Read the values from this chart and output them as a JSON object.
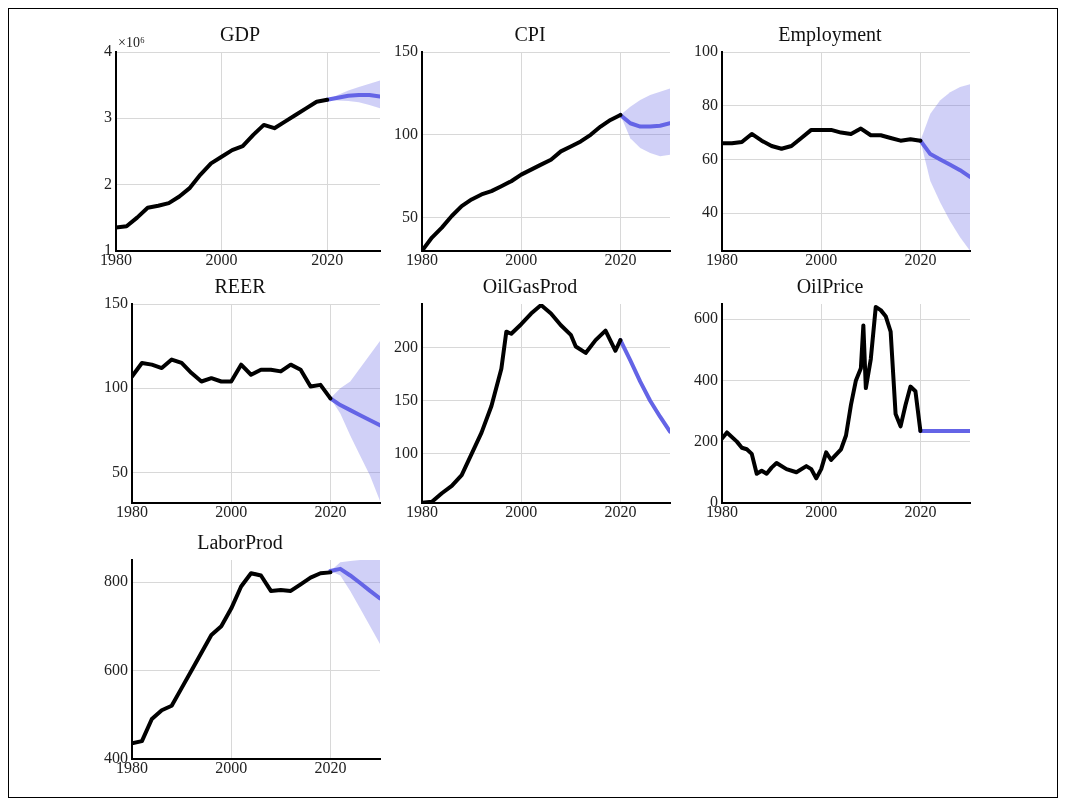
{
  "chart_data": [
    {
      "type": "line",
      "title": "GDP",
      "annotations": [
        "×10⁶"
      ],
      "xlim": [
        1980,
        2030
      ],
      "xticks": [
        1980,
        2000,
        2020
      ],
      "ylim": [
        1,
        4
      ],
      "yticks": [
        1,
        2,
        3,
        4
      ],
      "grid": true,
      "legend": false,
      "line_style": "solid",
      "marker": "none",
      "series": [
        {
          "color": "#000000",
          "x": [
            1980,
            1982,
            1984,
            1986,
            1988,
            1990,
            1992,
            1994,
            1996,
            1998,
            2000,
            2002,
            2004,
            2006,
            2008,
            2010,
            2012,
            2014,
            2016,
            2018,
            2020
          ],
          "values": [
            1.35,
            1.37,
            1.5,
            1.65,
            1.68,
            1.72,
            1.82,
            1.95,
            2.15,
            2.32,
            2.42,
            2.52,
            2.58,
            2.75,
            2.9,
            2.85,
            2.95,
            3.05,
            3.15,
            3.25,
            3.28
          ]
        },
        {
          "color": "#6464e6",
          "x": [
            2020,
            2022,
            2024,
            2026,
            2028,
            2030
          ],
          "values": [
            3.28,
            3.31,
            3.34,
            3.35,
            3.35,
            3.33
          ],
          "lower": [
            3.28,
            3.27,
            3.26,
            3.24,
            3.2,
            3.15
          ],
          "upper": [
            3.28,
            3.35,
            3.42,
            3.47,
            3.52,
            3.57
          ]
        }
      ]
    },
    {
      "type": "line",
      "title": "CPI",
      "xlim": [
        1980,
        2030
      ],
      "xticks": [
        1980,
        2000,
        2020
      ],
      "ylim": [
        30,
        150
      ],
      "yticks": [
        50,
        100,
        150
      ],
      "grid": true,
      "legend": false,
      "line_style": "solid",
      "marker": "none",
      "series": [
        {
          "color": "#000000",
          "x": [
            1980,
            1982,
            1984,
            1986,
            1988,
            1990,
            1992,
            1994,
            1996,
            1998,
            2000,
            2002,
            2004,
            2006,
            2008,
            2010,
            2012,
            2014,
            2016,
            2018,
            2020
          ],
          "values": [
            30,
            38,
            44,
            51,
            57,
            61,
            64,
            66,
            69,
            72,
            76,
            79,
            82,
            85,
            90,
            93,
            96,
            100,
            105,
            109,
            112
          ]
        },
        {
          "color": "#6464e6",
          "x": [
            2020,
            2022,
            2024,
            2026,
            2028,
            2030
          ],
          "values": [
            112,
            107,
            105,
            105,
            105.5,
            107
          ],
          "lower": [
            112,
            98,
            92,
            89,
            87,
            88
          ],
          "upper": [
            112,
            117,
            121,
            124,
            126,
            128
          ]
        }
      ]
    },
    {
      "type": "line",
      "title": "Employment",
      "xlim": [
        1980,
        2030
      ],
      "xticks": [
        1980,
        2000,
        2020
      ],
      "ylim": [
        26,
        100
      ],
      "yticks": [
        40,
        60,
        80,
        100
      ],
      "grid": true,
      "legend": false,
      "line_style": "solid",
      "marker": "none",
      "series": [
        {
          "color": "#000000",
          "x": [
            1980,
            1982,
            1984,
            1986,
            1988,
            1990,
            1992,
            1994,
            1996,
            1998,
            2000,
            2002,
            2004,
            2006,
            2008,
            2010,
            2012,
            2014,
            2016,
            2018,
            2020
          ],
          "values": [
            66,
            66,
            66.5,
            69.5,
            67,
            65,
            64,
            65,
            68,
            71,
            71,
            71,
            70,
            69.5,
            71.5,
            69,
            69,
            68,
            67,
            67.5,
            67
          ]
        },
        {
          "color": "#6464e6",
          "x": [
            2020,
            2022,
            2024,
            2026,
            2028,
            2030
          ],
          "values": [
            67,
            62,
            60,
            58,
            56,
            53.5
          ],
          "lower": [
            67,
            52,
            44,
            37,
            31,
            26
          ],
          "upper": [
            67,
            77,
            82,
            85,
            87,
            88
          ]
        }
      ]
    },
    {
      "type": "line",
      "title": "REER",
      "xlim": [
        1980,
        2030
      ],
      "xticks": [
        1980,
        2000,
        2020
      ],
      "ylim": [
        32,
        150
      ],
      "yticks": [
        50,
        100,
        150
      ],
      "grid": true,
      "legend": false,
      "line_style": "solid",
      "marker": "none",
      "series": [
        {
          "color": "#000000",
          "x": [
            1980,
            1982,
            1984,
            1986,
            1988,
            1990,
            1992,
            1994,
            1996,
            1998,
            2000,
            2002,
            2004,
            2006,
            2008,
            2010,
            2012,
            2014,
            2016,
            2018,
            2020
          ],
          "values": [
            107,
            115,
            114,
            112,
            117,
            115,
            109,
            104,
            106,
            104,
            104,
            114,
            108,
            111,
            111,
            110,
            114,
            111,
            101,
            102,
            94
          ]
        },
        {
          "color": "#6464e6",
          "x": [
            2020,
            2022,
            2024,
            2026,
            2028,
            2030
          ],
          "values": [
            94,
            90,
            87,
            84,
            81,
            78
          ],
          "lower": [
            94,
            85,
            72,
            60,
            48,
            33
          ],
          "upper": [
            94,
            100,
            104,
            112,
            120,
            128
          ]
        }
      ]
    },
    {
      "type": "line",
      "title": "OilGasProd",
      "xlim": [
        1980,
        2030
      ],
      "xticks": [
        1980,
        2000,
        2020
      ],
      "ylim": [
        54,
        241
      ],
      "yticks": [
        100,
        150,
        200
      ],
      "grid": true,
      "legend": false,
      "line_style": "solid",
      "marker": "none",
      "series": [
        {
          "color": "#000000",
          "x": [
            1980,
            1982,
            1984,
            1986,
            1988,
            1990,
            1992,
            1994,
            1996,
            1997,
            1998,
            2000,
            2002,
            2004,
            2006,
            2008,
            2010,
            2011,
            2013,
            2015,
            2017,
            2019,
            2020
          ],
          "values": [
            54,
            55,
            63,
            70,
            80,
            100,
            120,
            145,
            180,
            215,
            213,
            222,
            232,
            240,
            232,
            221,
            212,
            201,
            195,
            207,
            216,
            197,
            207
          ]
        },
        {
          "color": "#6464e6",
          "x": [
            2020,
            2022,
            2024,
            2026,
            2028,
            2030
          ],
          "values": [
            207,
            188,
            168,
            150,
            135,
            121
          ]
        }
      ]
    },
    {
      "type": "line",
      "title": "OilPrice",
      "xlim": [
        1980,
        2030
      ],
      "xticks": [
        1980,
        2000,
        2020
      ],
      "ylim": [
        0,
        650
      ],
      "yticks": [
        0,
        200,
        400,
        600
      ],
      "grid": true,
      "legend": false,
      "line_style": "solid",
      "marker": "none",
      "series": [
        {
          "color": "#000000",
          "x": [
            1980,
            1981,
            1983,
            1984,
            1985,
            1986,
            1987,
            1988,
            1989,
            1990,
            1991,
            1993,
            1995,
            1997,
            1998,
            1999,
            2000,
            2001,
            2002,
            2004,
            2005,
            2006,
            2007,
            2008,
            2008.5,
            2009,
            2010,
            2011,
            2012,
            2013,
            2014,
            2015,
            2016,
            2017,
            2018,
            2019,
            2020
          ],
          "values": [
            210,
            230,
            200,
            180,
            175,
            160,
            95,
            105,
            95,
            115,
            130,
            110,
            100,
            120,
            110,
            80,
            110,
            165,
            140,
            175,
            220,
            320,
            400,
            440,
            580,
            375,
            470,
            640,
            630,
            610,
            560,
            290,
            250,
            320,
            380,
            365,
            235
          ]
        },
        {
          "color": "#6464e6",
          "x": [
            2020,
            2022,
            2024,
            2026,
            2028,
            2030
          ],
          "values": [
            235,
            235,
            235,
            235,
            235,
            235
          ]
        }
      ]
    },
    {
      "type": "line",
      "title": "LaborProd",
      "xlim": [
        1980,
        2030
      ],
      "xticks": [
        1980,
        2000,
        2020
      ],
      "ylim": [
        400,
        850
      ],
      "yticks": [
        400,
        600,
        800
      ],
      "grid": true,
      "legend": false,
      "line_style": "solid",
      "marker": "none",
      "series": [
        {
          "color": "#000000",
          "x": [
            1980,
            1982,
            1984,
            1986,
            1988,
            1990,
            1992,
            1994,
            1996,
            1998,
            2000,
            2002,
            2004,
            2006,
            2008,
            2010,
            2012,
            2014,
            2016,
            2018,
            2020
          ],
          "values": [
            435,
            440,
            490,
            510,
            520,
            560,
            600,
            640,
            680,
            700,
            740,
            790,
            820,
            815,
            780,
            782,
            780,
            795,
            810,
            820,
            822
          ]
        },
        {
          "color": "#6464e6",
          "x": [
            2020,
            2022,
            2024,
            2026,
            2028,
            2030
          ],
          "values": [
            825,
            830,
            815,
            798,
            780,
            763
          ],
          "lower": [
            825,
            815,
            780,
            740,
            700,
            660
          ],
          "upper": [
            825,
            845,
            848,
            850,
            850,
            850
          ]
        }
      ]
    }
  ]
}
